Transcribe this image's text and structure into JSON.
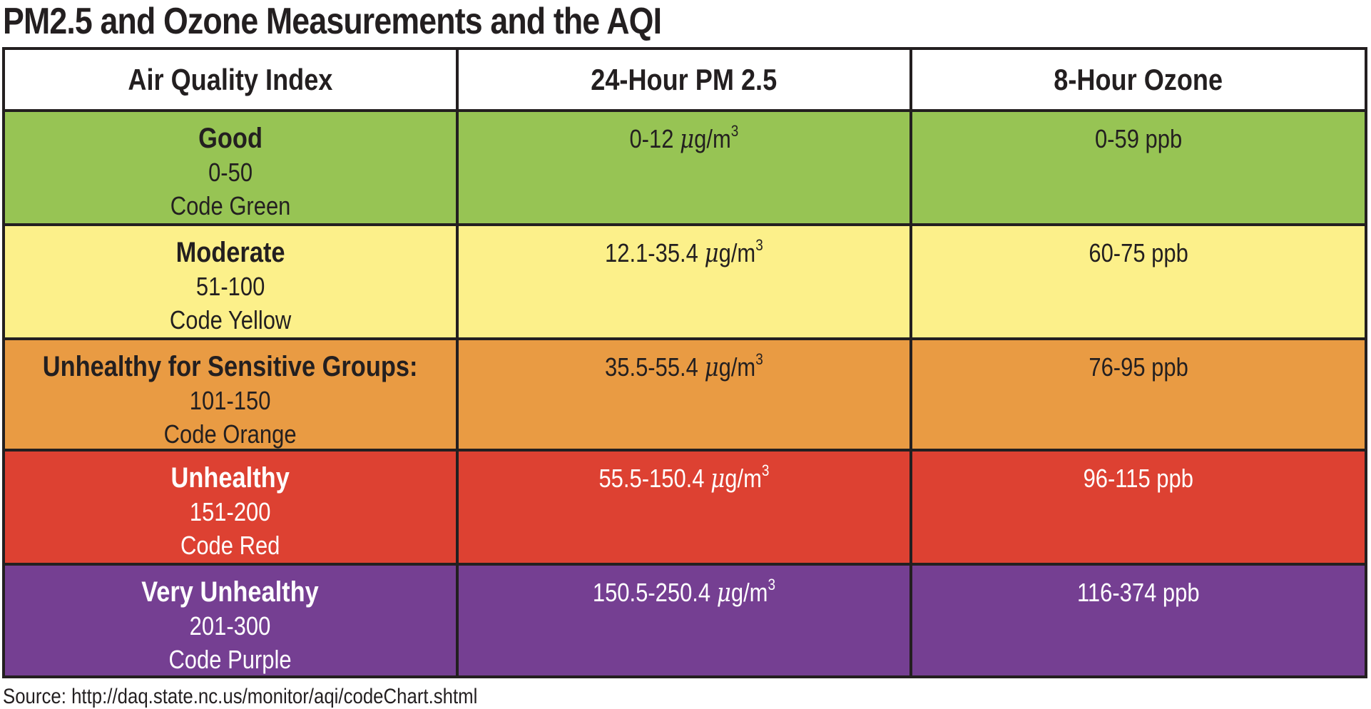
{
  "title": "PM2.5 and Ozone Measurements and the AQI",
  "table": {
    "headers": [
      "Air Quality Index",
      "24-Hour PM 2.5",
      "8-Hour Ozone"
    ],
    "pm_unit": "g/m",
    "pm_unit_mu": "μ",
    "pm_unit_exp": "3",
    "rows": [
      {
        "category": "Good",
        "aqi_range": "0-50",
        "code": "Code Green",
        "pm25": "0-12",
        "ozone": "0-59 ppb",
        "color": "#97c454",
        "text_color": "#231f20"
      },
      {
        "category": "Moderate",
        "aqi_range": "51-100",
        "code": "Code Yellow",
        "pm25": "12.1-35.4",
        "ozone": "60-75 ppb",
        "color": "#fcf08a",
        "text_color": "#231f20"
      },
      {
        "category": "Unhealthy for Sensitive Groups:",
        "aqi_range": "101-150",
        "code": "Code Orange",
        "pm25": "35.5-55.4",
        "ozone": "76-95 ppb",
        "color": "#e99b43",
        "text_color": "#231f20"
      },
      {
        "category": "Unhealthy",
        "aqi_range": "151-200",
        "code": "Code Red",
        "pm25": "55.5-150.4",
        "ozone": "96-115 ppb",
        "color": "#dd4132",
        "text_color": "#ffffff"
      },
      {
        "category": "Very Unhealthy",
        "aqi_range": "201-300",
        "code": "Code Purple",
        "pm25": "150.5-250.4",
        "ozone": "116-374 ppb",
        "color": "#753f92",
        "text_color": "#ffffff"
      }
    ]
  },
  "source": "Source: http://daq.state.nc.us/monitor/aqi/codeChart.shtml"
}
